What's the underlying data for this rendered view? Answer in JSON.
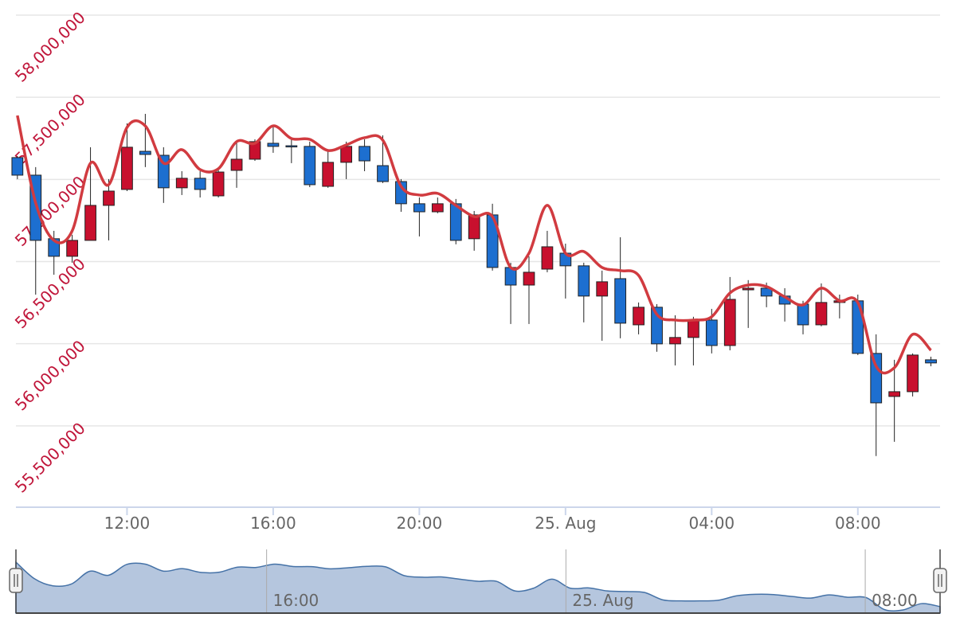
{
  "chart_data": {
    "type": "candlestick",
    "x": [
      9,
      9.5,
      10,
      10.5,
      11,
      11.5,
      12,
      12.5,
      13,
      13.5,
      14,
      14.5,
      15,
      15.5,
      16,
      16.5,
      17,
      17.5,
      18,
      18.5,
      19,
      19.5,
      20,
      20.5,
      21,
      21.5,
      22,
      22.5,
      23,
      23.5,
      24,
      24.5,
      25,
      25.5,
      26,
      26.5,
      27,
      27.5,
      28,
      28.5,
      29,
      29.5,
      30,
      30.5,
      31,
      31.5,
      32,
      32.5,
      33,
      33.5,
      34
    ],
    "open": [
      57133000,
      57026000,
      56639000,
      56532000,
      56629000,
      56842000,
      56939000,
      57171000,
      57147000,
      56949000,
      57007000,
      56900000,
      57055000,
      57123000,
      57220000,
      57205000,
      57201000,
      56958000,
      57104000,
      57201000,
      57084000,
      56987000,
      56852000,
      56803000,
      56852000,
      56639000,
      56784000,
      56464000,
      56357000,
      56454000,
      56551000,
      56474000,
      56290000,
      56396000,
      56115000,
      56222000,
      55999000,
      56038000,
      56144000,
      55989000,
      56328000,
      56338000,
      56290000,
      56241000,
      56115000,
      56251000,
      56261000,
      55941000,
      55679000,
      55708000,
      55902000
    ],
    "high": [
      57142000,
      57075000,
      56687000,
      56663000,
      57196000,
      57002000,
      57341000,
      57399000,
      57196000,
      57050000,
      57050000,
      57075000,
      57230000,
      57244000,
      57326000,
      57244000,
      57230000,
      57171000,
      57230000,
      57244000,
      57268000,
      57002000,
      56890000,
      56890000,
      56881000,
      56808000,
      56852000,
      56493000,
      56532000,
      56687000,
      56609000,
      56493000,
      56445000,
      56648000,
      56251000,
      56241000,
      56173000,
      56164000,
      56212000,
      56406000,
      56387000,
      56372000,
      56338000,
      56261000,
      56367000,
      56299000,
      56299000,
      56057000,
      55902000,
      55941000,
      55921000
    ],
    "low": [
      57002000,
      56299000,
      56420000,
      56493000,
      56629000,
      56629000,
      56929000,
      57075000,
      56857000,
      56905000,
      56890000,
      56890000,
      56949000,
      57113000,
      57162000,
      57099000,
      56953000,
      56949000,
      57002000,
      57050000,
      56978000,
      56803000,
      56653000,
      56794000,
      56605000,
      56566000,
      56445000,
      56120000,
      56120000,
      56435000,
      56275000,
      56130000,
      56018000,
      56033000,
      56057000,
      55951000,
      55868000,
      55868000,
      55941000,
      55960000,
      56096000,
      56222000,
      56135000,
      56057000,
      56106000,
      56154000,
      55931000,
      55316000,
      55403000,
      55679000,
      55863000
    ],
    "close": [
      57026000,
      56629000,
      56532000,
      56629000,
      56842000,
      56929000,
      57196000,
      57152000,
      56949000,
      57007000,
      56939000,
      57045000,
      57123000,
      57230000,
      57201000,
      57201000,
      56968000,
      57104000,
      57201000,
      57113000,
      56987000,
      56852000,
      56803000,
      56852000,
      56629000,
      56784000,
      56464000,
      56357000,
      56435000,
      56590000,
      56474000,
      56290000,
      56377000,
      56125000,
      56222000,
      55999000,
      56038000,
      56144000,
      55989000,
      56270000,
      56338000,
      56290000,
      56241000,
      56115000,
      56251000,
      56261000,
      55941000,
      55640000,
      55708000,
      55931000,
      55883000
    ],
    "up_color": "#c8102e",
    "down_color": "#1d6fd0",
    "line": {
      "type": "spline",
      "color": "#d13b40",
      "values": [
        57389000,
        56857000,
        56629000,
        56687000,
        57099000,
        56968000,
        57317000,
        57326000,
        57099000,
        57181000,
        57060000,
        57065000,
        57230000,
        57220000,
        57326000,
        57249000,
        57244000,
        57176000,
        57210000,
        57254000,
        57239000,
        56958000,
        56905000,
        56915000,
        56842000,
        56774000,
        56774000,
        56464000,
        56551000,
        56842000,
        56551000,
        56561000,
        56464000,
        56445000,
        56416000,
        56178000,
        56144000,
        56144000,
        56164000,
        56309000,
        56357000,
        56348000,
        56285000,
        56236000,
        56338000,
        56261000,
        56251000,
        55863000,
        55854000,
        56057000,
        55960000
      ]
    },
    "xlim": [
      8.96,
      34.25
    ],
    "xticks": [
      {
        "value": 12,
        "label": "12:00"
      },
      {
        "value": 16,
        "label": "16:00"
      },
      {
        "value": 20,
        "label": "20:00"
      },
      {
        "value": 24,
        "label": "25. Aug"
      },
      {
        "value": 28,
        "label": "04:00"
      },
      {
        "value": 32,
        "label": "08:00"
      }
    ],
    "ylim": [
      55000000,
      58000000
    ],
    "yticks": [
      {
        "value": 55500000,
        "label": "55,500,000"
      },
      {
        "value": 56000000,
        "label": "56,000,000"
      },
      {
        "value": 56500000,
        "label": "56,500,000"
      },
      {
        "value": 57000000,
        "label": "57,000,000"
      },
      {
        "value": 57500000,
        "label": "57,500,000"
      },
      {
        "value": 58000000,
        "label": "58,000,000"
      }
    ],
    "grid": true,
    "navigator": {
      "xlim": [
        9.3,
        34.0
      ],
      "xticks": [
        {
          "value": 16,
          "label": "16:00"
        },
        {
          "value": 24,
          "label": "25. Aug"
        },
        {
          "value": 32,
          "label": "08:00"
        }
      ],
      "color": "#4572a7",
      "fill": "#b5c6de"
    }
  }
}
